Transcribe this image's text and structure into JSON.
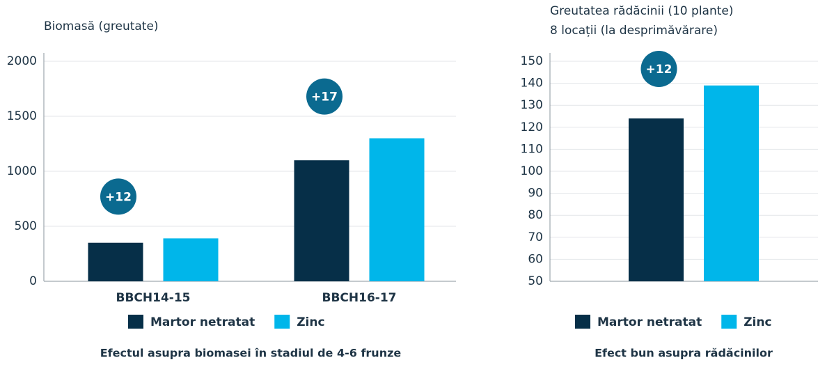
{
  "chart_data": [
    {
      "type": "bar",
      "title": "Biomasă (greutate)",
      "categories": [
        "BBCH14-15",
        "BBCH16-17"
      ],
      "series": [
        {
          "name": "Martor netratat",
          "color": "#062f48",
          "values": [
            350,
            1100
          ]
        },
        {
          "name": "Zinc",
          "color": "#00b6ea",
          "values": [
            390,
            1300
          ]
        }
      ],
      "annotations": [
        "+12",
        "+17"
      ],
      "ylim": [
        0,
        2000
      ],
      "yticks": [
        0,
        500,
        1000,
        1500,
        2000
      ],
      "grid": true,
      "caption": "Efectul asupra biomasei în stadiul de 4-6 frunze"
    },
    {
      "type": "bar",
      "title": "Greutatea rădăcinii (10 plante)",
      "subtitle": "8 locații (la desprimăvărare)",
      "categories": [
        null
      ],
      "series": [
        {
          "name": "Martor netratat",
          "color": "#062f48",
          "values": [
            124
          ]
        },
        {
          "name": "Zinc",
          "color": "#00b6ea",
          "values": [
            139
          ]
        }
      ],
      "annotations": [
        "+12"
      ],
      "ylim": [
        50,
        150
      ],
      "yticks": [
        50,
        60,
        70,
        80,
        90,
        100,
        110,
        120,
        130,
        140,
        150
      ],
      "grid": true,
      "caption": "Efect bun asupra rădăcinilor"
    }
  ]
}
